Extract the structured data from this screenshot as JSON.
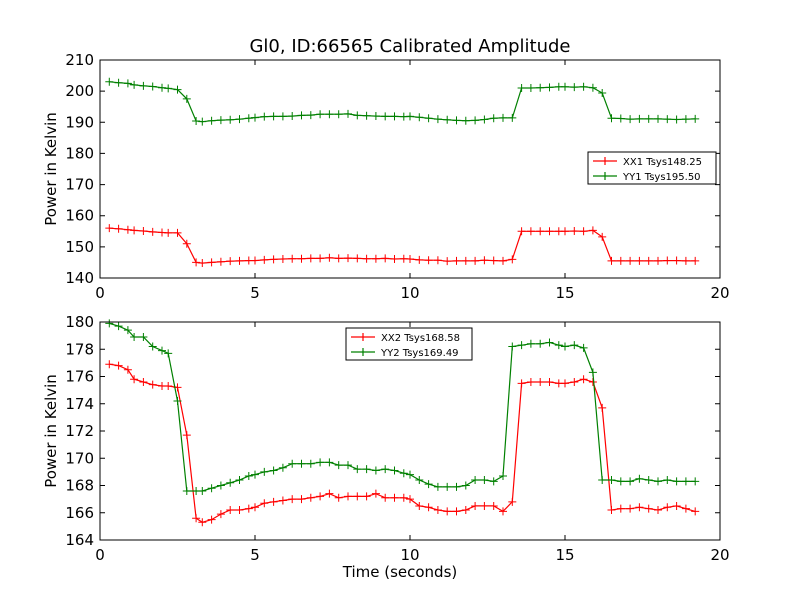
{
  "figure_title": "Gl0, ID:66565 Calibrated Amplitude",
  "colors": {
    "series1": "#ff0000",
    "series2": "#008000"
  },
  "chart_data": [
    {
      "type": "line",
      "xlabel": "",
      "ylabel": "Power in Kelvin",
      "xlim": [
        0,
        20
      ],
      "ylim": [
        140,
        210
      ],
      "xticks": [
        0,
        5,
        10,
        15,
        20
      ],
      "yticks": [
        140,
        150,
        160,
        170,
        180,
        190,
        200,
        210
      ],
      "grid": false,
      "legend_position": "right",
      "x": [
        0.3,
        0.6,
        0.9,
        1.1,
        1.4,
        1.7,
        2.0,
        2.2,
        2.5,
        2.8,
        3.1,
        3.3,
        3.6,
        3.9,
        4.2,
        4.5,
        4.8,
        5.0,
        5.3,
        5.6,
        5.9,
        6.2,
        6.5,
        6.8,
        7.1,
        7.4,
        7.7,
        8.0,
        8.3,
        8.6,
        8.9,
        9.2,
        9.5,
        9.8,
        10.0,
        10.3,
        10.6,
        10.9,
        11.2,
        11.5,
        11.8,
        12.1,
        12.4,
        12.7,
        13.0,
        13.3,
        13.6,
        13.9,
        14.2,
        14.5,
        14.8,
        15.0,
        15.3,
        15.6,
        15.9,
        16.2,
        16.5,
        16.8,
        17.1,
        17.4,
        17.7,
        18.0,
        18.3,
        18.6,
        18.9,
        19.2
      ],
      "series": [
        {
          "name": "XX1 Tsys148.25",
          "color": "#ff0000",
          "values": [
            156.0,
            155.8,
            155.5,
            155.3,
            155.1,
            154.8,
            154.6,
            154.5,
            154.5,
            151.0,
            145.0,
            144.8,
            145.0,
            145.2,
            145.4,
            145.5,
            145.6,
            145.6,
            145.8,
            146.0,
            146.1,
            146.2,
            146.2,
            146.3,
            146.3,
            146.5,
            146.3,
            146.4,
            146.3,
            146.2,
            146.2,
            146.3,
            146.1,
            146.2,
            146.1,
            145.8,
            145.7,
            145.7,
            145.4,
            145.5,
            145.5,
            145.5,
            145.7,
            145.6,
            145.5,
            146.0,
            155.0,
            155.0,
            155.0,
            155.0,
            155.0,
            155.0,
            155.1,
            155.0,
            155.3,
            153.2,
            145.5,
            145.5,
            145.5,
            145.5,
            145.5,
            145.5,
            145.6,
            145.6,
            145.5,
            145.5
          ]
        },
        {
          "name": "YY1 Tsys195.50",
          "color": "#008000",
          "values": [
            203.0,
            202.7,
            202.5,
            202.0,
            201.7,
            201.5,
            201.1,
            200.9,
            200.5,
            197.5,
            190.4,
            190.2,
            190.5,
            190.7,
            190.8,
            191.0,
            191.3,
            191.5,
            191.8,
            191.9,
            191.9,
            192.0,
            192.2,
            192.3,
            192.6,
            192.6,
            192.6,
            192.7,
            192.2,
            192.1,
            192.0,
            191.9,
            191.9,
            191.8,
            191.9,
            191.6,
            191.3,
            191.0,
            190.8,
            190.6,
            190.5,
            190.6,
            190.9,
            191.3,
            191.4,
            191.4,
            201.0,
            201.0,
            201.1,
            201.2,
            201.4,
            201.4,
            201.3,
            201.4,
            201.1,
            199.4,
            191.3,
            191.2,
            191.0,
            191.1,
            191.1,
            191.1,
            191.0,
            190.9,
            191.0,
            191.1
          ]
        }
      ]
    },
    {
      "type": "line",
      "xlabel": "Time (seconds)",
      "ylabel": "Power in Kelvin",
      "xlim": [
        0,
        20
      ],
      "ylim": [
        164,
        180
      ],
      "xticks": [
        0,
        5,
        10,
        15,
        20
      ],
      "yticks": [
        164,
        166,
        168,
        170,
        172,
        174,
        176,
        178,
        180
      ],
      "grid": false,
      "legend_position": "upper-center",
      "x": [
        0.3,
        0.6,
        0.9,
        1.1,
        1.4,
        1.7,
        2.0,
        2.2,
        2.5,
        2.8,
        3.1,
        3.3,
        3.6,
        3.9,
        4.2,
        4.5,
        4.8,
        5.0,
        5.3,
        5.6,
        5.9,
        6.2,
        6.5,
        6.8,
        7.1,
        7.4,
        7.7,
        8.0,
        8.3,
        8.6,
        8.9,
        9.2,
        9.5,
        9.8,
        10.0,
        10.3,
        10.6,
        10.9,
        11.2,
        11.5,
        11.8,
        12.1,
        12.4,
        12.7,
        13.0,
        13.3,
        13.6,
        13.9,
        14.2,
        14.5,
        14.8,
        15.0,
        15.3,
        15.6,
        15.9,
        16.2,
        16.5,
        16.8,
        17.1,
        17.4,
        17.7,
        18.0,
        18.3,
        18.6,
        18.9,
        19.2
      ],
      "series": [
        {
          "name": "XX2 Tsys168.58",
          "color": "#ff0000",
          "values": [
            176.9,
            176.8,
            176.5,
            175.8,
            175.6,
            175.4,
            175.3,
            175.3,
            175.2,
            171.7,
            165.6,
            165.3,
            165.5,
            165.9,
            166.2,
            166.2,
            166.3,
            166.4,
            166.7,
            166.8,
            166.9,
            167.0,
            167.0,
            167.1,
            167.2,
            167.4,
            167.1,
            167.2,
            167.2,
            167.2,
            167.4,
            167.1,
            167.1,
            167.1,
            167.0,
            166.5,
            166.4,
            166.2,
            166.1,
            166.1,
            166.2,
            166.5,
            166.5,
            166.5,
            166.1,
            166.8,
            175.5,
            175.6,
            175.6,
            175.6,
            175.5,
            175.5,
            175.6,
            175.8,
            175.6,
            173.7,
            166.2,
            166.3,
            166.3,
            166.4,
            166.3,
            166.2,
            166.4,
            166.5,
            166.3,
            166.1
          ]
        },
        {
          "name": "YY2 Tsys169.49",
          "color": "#008000",
          "values": [
            179.9,
            179.7,
            179.4,
            178.9,
            178.9,
            178.2,
            177.9,
            177.7,
            174.2,
            167.6,
            167.6,
            167.6,
            167.8,
            168.0,
            168.2,
            168.4,
            168.7,
            168.8,
            169.0,
            169.1,
            169.3,
            169.6,
            169.6,
            169.6,
            169.7,
            169.7,
            169.5,
            169.5,
            169.2,
            169.2,
            169.1,
            169.2,
            169.1,
            168.9,
            168.8,
            168.4,
            168.1,
            167.9,
            167.9,
            167.9,
            168.0,
            168.4,
            168.4,
            168.3,
            168.7,
            178.2,
            178.3,
            178.4,
            178.4,
            178.5,
            178.3,
            178.2,
            178.3,
            178.1,
            176.3,
            168.4,
            168.4,
            168.3,
            168.3,
            168.5,
            168.4,
            168.3,
            168.4,
            168.3,
            168.3,
            168.3
          ]
        }
      ]
    }
  ]
}
